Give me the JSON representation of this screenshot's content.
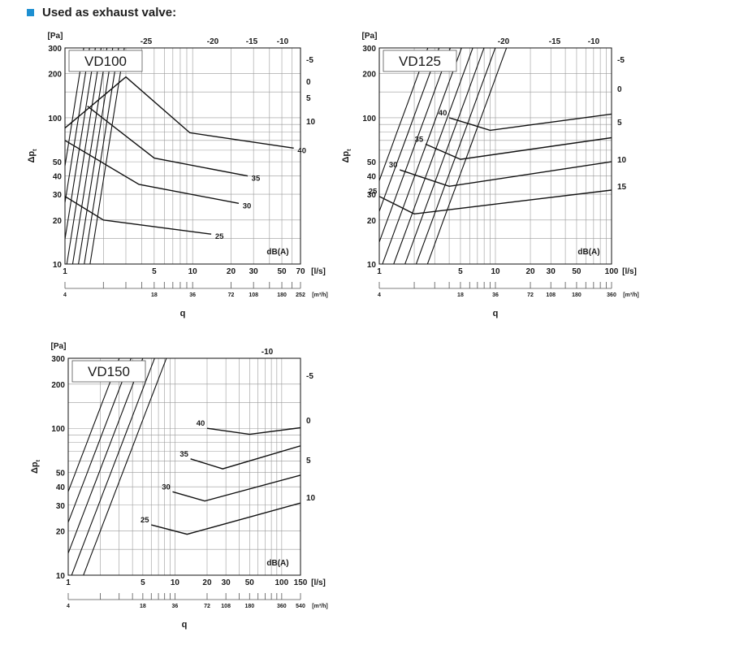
{
  "page": {
    "heading": "Used as exhaust valve:",
    "accent": "#1d8fd1"
  },
  "common": {
    "y_unit": "[Pa]",
    "y_label": "Δp",
    "y_label_sub": "t",
    "x_label": "q",
    "curve_label": "dB(A)",
    "y_ticks": [
      "300",
      "200",
      "100",
      "50",
      "40",
      "30",
      "20",
      "10"
    ]
  },
  "chart_data": [
    {
      "type": "line",
      "title": "VD100",
      "xscale": "log",
      "yscale": "log",
      "xlim": [
        1,
        70
      ],
      "ylim": [
        10,
        300
      ],
      "x_unit": "[l/s]",
      "x2_unit": "[m³/h]",
      "x_ticks": [
        "1",
        "5",
        "10",
        "20",
        "30",
        "50",
        "70"
      ],
      "x2_ticks": [
        "4",
        "18",
        "36",
        "72",
        "108",
        "180",
        "252"
      ],
      "iso_level_labels": [
        "-25",
        "-20",
        "-15",
        "-10",
        "-5",
        "0",
        "5",
        "10"
      ],
      "noise_series": [
        {
          "name": "40",
          "points": [
            [
              1,
              85
            ],
            [
              3,
              190
            ],
            [
              9.5,
              79
            ],
            [
              62,
              62
            ]
          ]
        },
        {
          "name": "35",
          "points": [
            [
              1.5,
              120
            ],
            [
              5,
              53
            ],
            [
              27,
              40
            ]
          ]
        },
        {
          "name": "30",
          "points": [
            [
              1,
              70
            ],
            [
              3.8,
              35
            ],
            [
              23,
              26
            ]
          ]
        },
        {
          "name": "25",
          "points": [
            [
              1,
              29
            ],
            [
              2,
              20
            ],
            [
              14,
              16
            ]
          ]
        }
      ]
    },
    {
      "type": "line",
      "title": "VD125",
      "xscale": "log",
      "yscale": "log",
      "xlim": [
        1,
        100
      ],
      "ylim": [
        10,
        300
      ],
      "x_unit": "[l/s]",
      "x2_unit": "[m³/h]",
      "x_ticks": [
        "1",
        "5",
        "10",
        "20",
        "30",
        "50",
        "100"
      ],
      "x2_ticks": [
        "4",
        "18",
        "36",
        "72",
        "108",
        "180",
        "360"
      ],
      "iso_level_labels": [
        "-20",
        "-15",
        "-10",
        "-5",
        "0",
        "5",
        "10",
        "15"
      ],
      "noise_series": [
        {
          "name": "40",
          "points": [
            [
              4,
              100
            ],
            [
              9,
              82
            ],
            [
              100,
              106
            ]
          ]
        },
        {
          "name": "35",
          "points": [
            [
              2.5,
              66
            ],
            [
              5,
              52
            ],
            [
              100,
              73
            ]
          ]
        },
        {
          "name": "30",
          "points": [
            [
              1.5,
              44
            ],
            [
              4,
              34
            ],
            [
              100,
              50
            ]
          ]
        },
        {
          "name": "25",
          "points": [
            [
              1,
              29
            ],
            [
              2,
              22
            ],
            [
              100,
              32
            ]
          ]
        }
      ]
    },
    {
      "type": "line",
      "title": "VD150",
      "xscale": "log",
      "yscale": "log",
      "xlim": [
        1,
        150
      ],
      "ylim": [
        10,
        300
      ],
      "x_unit": "[l/s]",
      "x2_unit": "[m³/h]",
      "x_ticks": [
        "1",
        "5",
        "10",
        "20",
        "30",
        "50",
        "100",
        "150"
      ],
      "x2_ticks": [
        "4",
        "18",
        "36",
        "72",
        "108",
        "180",
        "360",
        "540"
      ],
      "iso_level_labels": [
        "-10",
        "-5",
        "0",
        "5",
        "10"
      ],
      "noise_series": [
        {
          "name": "40",
          "points": [
            [
              20,
              100
            ],
            [
              50,
              91
            ],
            [
              150,
              101
            ]
          ]
        },
        {
          "name": "35",
          "points": [
            [
              14,
              62
            ],
            [
              28,
              53
            ],
            [
              150,
              76
            ]
          ]
        },
        {
          "name": "30",
          "points": [
            [
              9.5,
              37
            ],
            [
              19,
              32
            ],
            [
              150,
              48
            ]
          ]
        },
        {
          "name": "25",
          "points": [
            [
              6,
              22
            ],
            [
              13,
              19
            ],
            [
              150,
              31
            ]
          ]
        }
      ]
    }
  ]
}
